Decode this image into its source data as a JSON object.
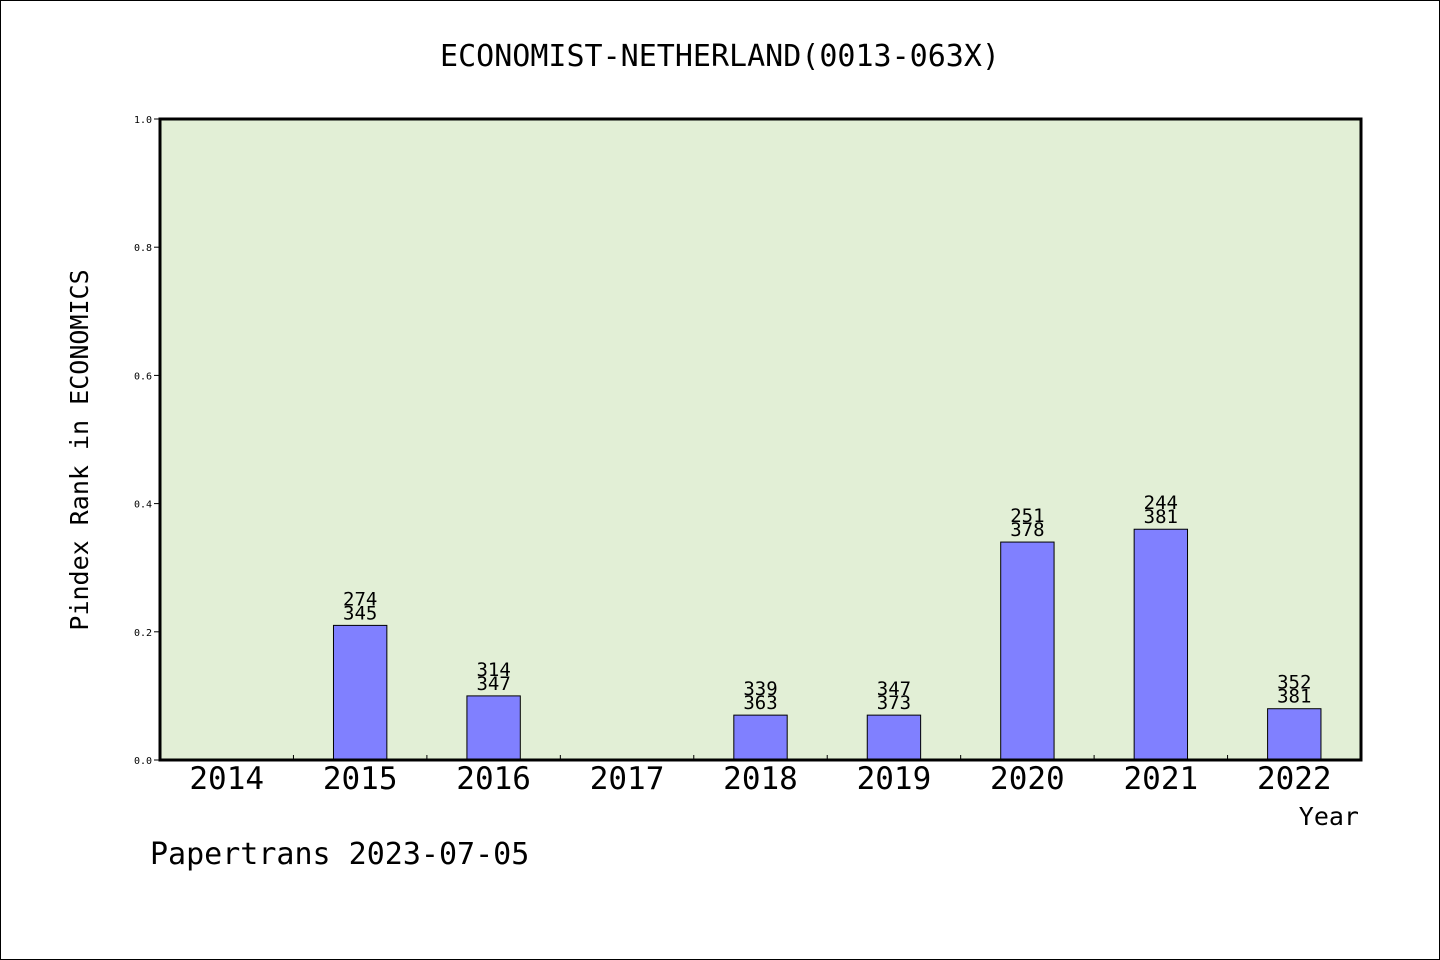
{
  "chart_data": {
    "type": "bar",
    "title": "ECONOMIST-NETHERLAND(0013-063X)",
    "xlabel": "Year",
    "ylabel": "Pindex Rank in ECONOMICS",
    "ylim": [
      0,
      1.0
    ],
    "yticks": [
      "0.0",
      "0.2",
      "0.4",
      "0.6",
      "0.8",
      "1.0"
    ],
    "categories": [
      "2014",
      "2015",
      "2016",
      "2017",
      "2018",
      "2019",
      "2020",
      "2021",
      "2022"
    ],
    "values": [
      null,
      0.21,
      0.1,
      null,
      0.07,
      0.07,
      0.34,
      0.36,
      0.08
    ],
    "labels_top": [
      "",
      "274",
      "314",
      "",
      "339",
      "347",
      "251",
      "244",
      "352"
    ],
    "labels_bottom": [
      "",
      "345",
      "347",
      "",
      "363",
      "373",
      "378",
      "381",
      "381"
    ],
    "bar_color": "#8080ff",
    "plot_bg_color": "#e2efd6",
    "grid": false
  },
  "footer": {
    "text": "Papertrans 2023-07-05"
  }
}
